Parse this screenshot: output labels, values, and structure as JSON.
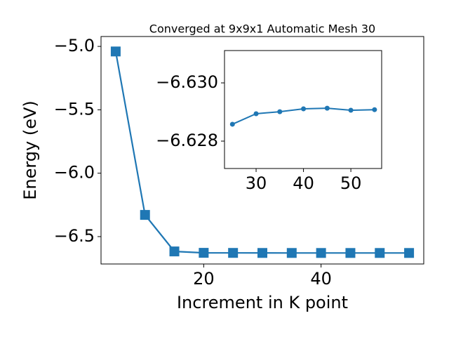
{
  "chart_data": [
    {
      "type": "line",
      "title": "Converged at 9x9x1 Automatic Mesh 30",
      "xlabel": "Increment in K point",
      "ylabel": "Energy (eV)",
      "x": [
        5,
        10,
        15,
        20,
        25,
        30,
        35,
        40,
        45,
        50,
        55
      ],
      "series": [
        {
          "color": "#1f77b4",
          "marker": "square",
          "values": [
            -5.04,
            -6.329,
            -6.617,
            -6.628,
            -6.62858,
            -6.62894,
            -6.62901,
            -6.62911,
            -6.62913,
            -6.62906,
            -6.62908
          ]
        }
      ],
      "xlim": [
        2.5,
        57.5
      ],
      "ylim": [
        -6.716,
        -4.922
      ],
      "xticks": [
        20,
        40
      ],
      "yticks": [
        {
          "value": -5.0,
          "label": "−5.0"
        },
        {
          "value": -5.5,
          "label": "−5.5"
        },
        {
          "value": -6.0,
          "label": "−6.0"
        },
        {
          "value": -6.5,
          "label": "−6.5"
        }
      ]
    },
    {
      "type": "line",
      "x": [
        25,
        30,
        35,
        40,
        45,
        50,
        55
      ],
      "series": [
        {
          "color": "#1f77b4",
          "marker": "circle",
          "values": [
            -6.62858,
            -6.62894,
            -6.62901,
            -6.62911,
            -6.62913,
            -6.62906,
            -6.62908
          ]
        }
      ],
      "xlim": [
        23.33,
        56.5
      ],
      "ylim": [
        -6.62706,
        -6.63111
      ],
      "xticks": [
        30,
        40,
        50
      ],
      "yticks": [
        {
          "value": -6.63,
          "label": "−6.630"
        },
        {
          "value": -6.628,
          "label": "−6.628"
        }
      ]
    }
  ]
}
